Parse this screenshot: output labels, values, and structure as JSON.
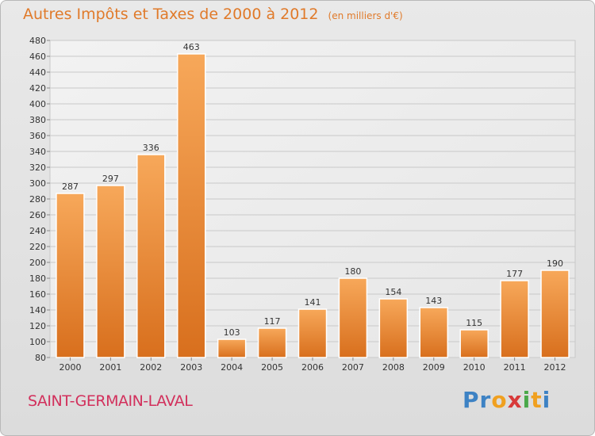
{
  "header": {
    "title": "Autres Impôts et Taxes de 2000 à 2012",
    "unit": "(en milliers d'€)"
  },
  "footer": {
    "town": "SAINT-GERMAIN-LAVAL",
    "logo_letters": [
      "P",
      "r",
      "o",
      "x",
      "i",
      "t",
      "i"
    ]
  },
  "colors": {
    "accent": "#e07a2a",
    "bar_top": "#f7a85a",
    "bar_bottom": "#d86f1d",
    "town": "#d2305c",
    "logo": [
      "#3d82c4",
      "#3d82c4",
      "#f0a020",
      "#d83a3a",
      "#4aa84a",
      "#f0a020",
      "#3d82c4"
    ]
  },
  "chart_data": {
    "type": "bar",
    "title": "Autres Impôts et Taxes de 2000 à 2012",
    "subtitle": "(en milliers d'€)",
    "xlabel": "",
    "ylabel": "",
    "categories": [
      "2000",
      "2001",
      "2002",
      "2003",
      "2004",
      "2005",
      "2006",
      "2007",
      "2008",
      "2009",
      "2010",
      "2011",
      "2012"
    ],
    "values": [
      287,
      297,
      336,
      463,
      103,
      117,
      141,
      180,
      154,
      143,
      115,
      177,
      190
    ],
    "ylim": [
      80,
      480
    ],
    "yticks": [
      80,
      100,
      120,
      140,
      160,
      180,
      200,
      220,
      240,
      260,
      280,
      300,
      320,
      340,
      360,
      380,
      400,
      420,
      440,
      460,
      480
    ],
    "grid": true,
    "data_labels": true
  }
}
